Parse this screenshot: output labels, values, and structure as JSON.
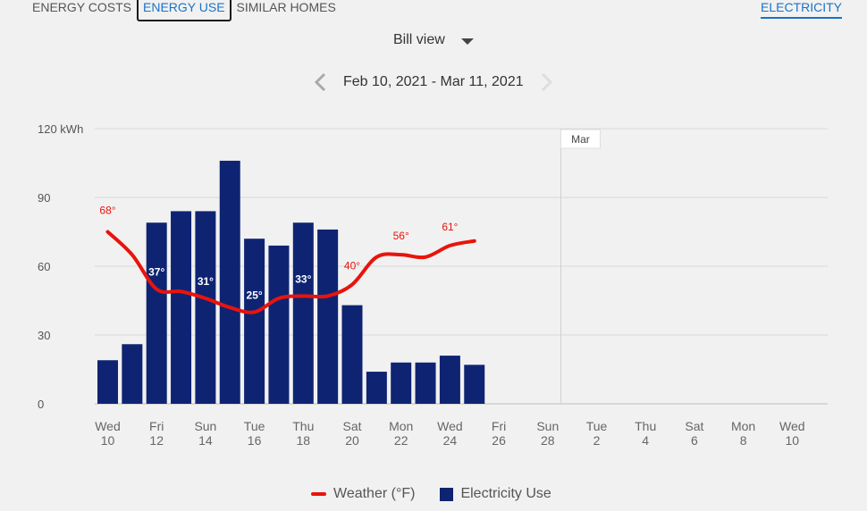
{
  "tabs": [
    {
      "label": "ENERGY COSTS"
    },
    {
      "label": "ENERGY USE"
    },
    {
      "label": "SIMILAR HOMES"
    }
  ],
  "fuel_tab": {
    "label": "ELECTRICITY"
  },
  "view_select": {
    "label": "Bill view"
  },
  "date_range": {
    "label": "Feb 10, 2021 - Mar 11, 2021"
  },
  "chart_data": {
    "type": "bar",
    "y_unit_label": "120 kWh",
    "yticks": [
      0,
      30,
      60,
      90,
      120
    ],
    "ylim": [
      0,
      120
    ],
    "month_marker": "Mar",
    "x_days": 31,
    "xticks": [
      {
        "day": "Wed",
        "date": "10"
      },
      {
        "day": "Fri",
        "date": "12"
      },
      {
        "day": "Sun",
        "date": "14"
      },
      {
        "day": "Tue",
        "date": "16"
      },
      {
        "day": "Thu",
        "date": "18"
      },
      {
        "day": "Sat",
        "date": "20"
      },
      {
        "day": "Mon",
        "date": "22"
      },
      {
        "day": "Wed",
        "date": "24"
      },
      {
        "day": "Fri",
        "date": "26"
      },
      {
        "day": "Sun",
        "date": "28"
      },
      {
        "day": "Tue",
        "date": "2"
      },
      {
        "day": "Thu",
        "date": "4"
      },
      {
        "day": "Sat",
        "date": "6"
      },
      {
        "day": "Mon",
        "date": "8"
      },
      {
        "day": "Wed",
        "date": "10"
      }
    ],
    "electricity_use_kwh": [
      19,
      26,
      79,
      84,
      84,
      106,
      72,
      69,
      79,
      76,
      43,
      14,
      18,
      18,
      21,
      17
    ],
    "weather_f": [
      75,
      65,
      50,
      49,
      46,
      42,
      40,
      46,
      47,
      47,
      52,
      64,
      65,
      64,
      69,
      71
    ],
    "weather_labels": [
      {
        "index": 0,
        "text": "68°"
      },
      {
        "index": 2,
        "text": "37°"
      },
      {
        "index": 4,
        "text": "31°"
      },
      {
        "index": 6,
        "text": "25°"
      },
      {
        "index": 8,
        "text": "33°"
      },
      {
        "index": 10,
        "text": "40°"
      },
      {
        "index": 12,
        "text": "56°"
      },
      {
        "index": 14,
        "text": "61°"
      }
    ],
    "colors": {
      "bar": "#0e2473",
      "weather": "#e8140c"
    },
    "legend": [
      {
        "label": "Weather (°F)",
        "kind": "line"
      },
      {
        "label": "Electricity Use",
        "kind": "box"
      }
    ]
  }
}
